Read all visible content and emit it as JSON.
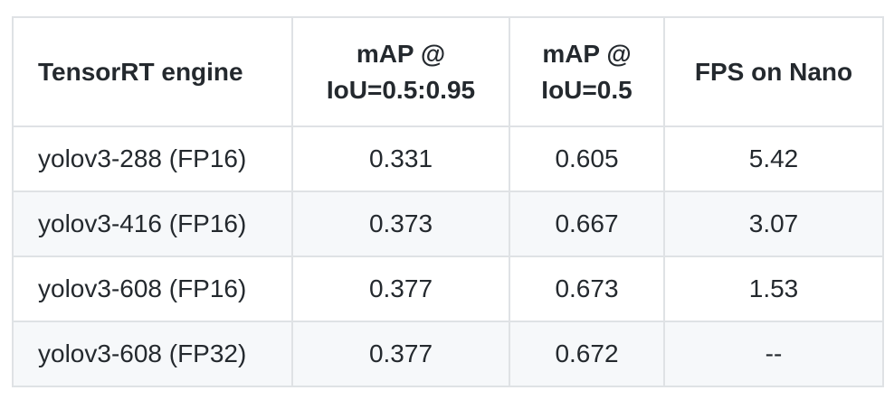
{
  "table": {
    "header": [
      "TensorRT engine",
      "mAP @ IoU=0.5:0.95",
      "mAP @ IoU=0.5",
      "FPS on Nano"
    ],
    "rows": [
      [
        "yolov3-288 (FP16)",
        "0.331",
        "0.605",
        "5.42"
      ],
      [
        "yolov3-416 (FP16)",
        "0.373",
        "0.667",
        "3.07"
      ],
      [
        "yolov3-608 (FP16)",
        "0.377",
        "0.673",
        "1.53"
      ],
      [
        "yolov3-608 (FP32)",
        "0.377",
        "0.672",
        "--"
      ]
    ]
  }
}
